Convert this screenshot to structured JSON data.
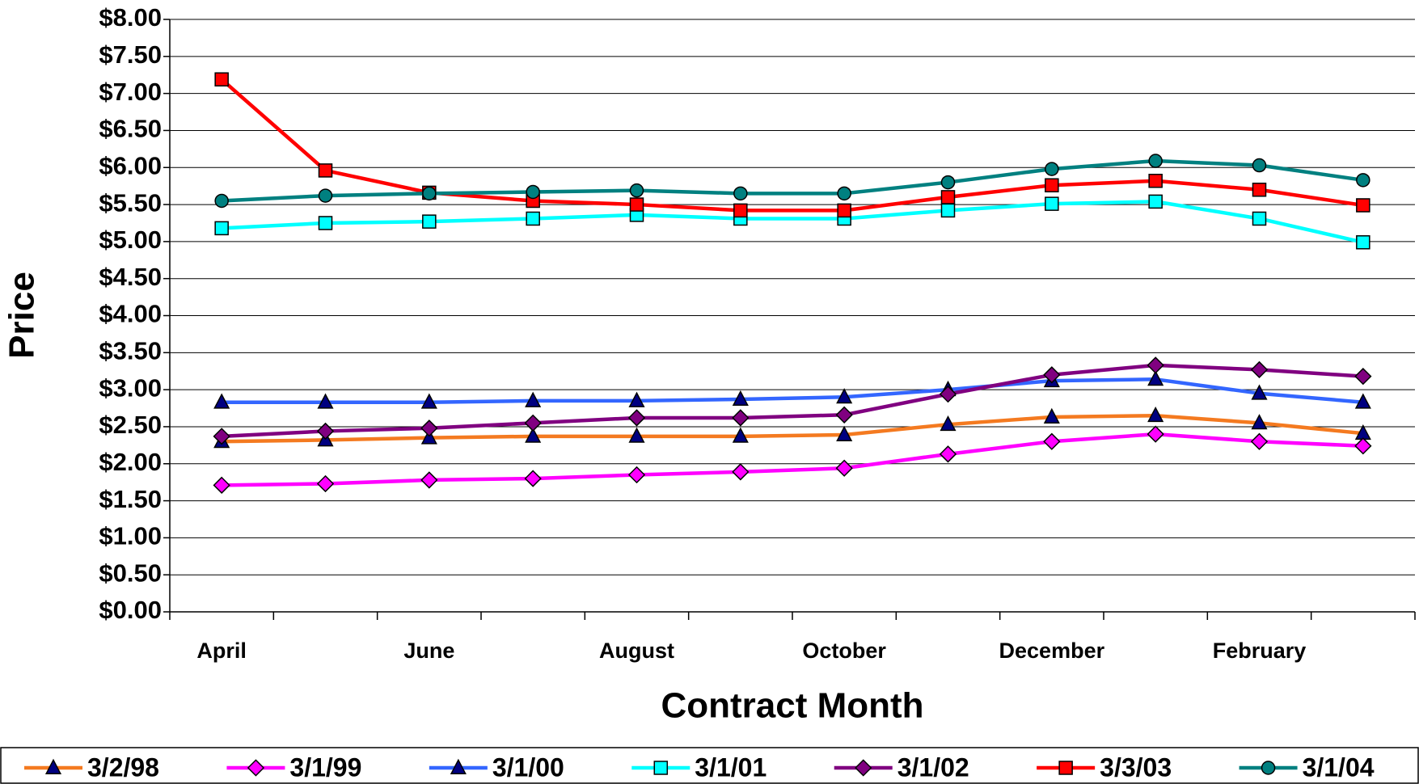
{
  "chart_data": {
    "type": "line",
    "x_label": "Contract Month",
    "y_label": "Price",
    "categories": [
      "April",
      null,
      "June",
      null,
      "August",
      null,
      "October",
      null,
      "December",
      null,
      "February",
      null
    ],
    "series": [
      {
        "name": "3/2/98",
        "color": "#f47a20",
        "marker": "triangle",
        "marker_color": "#000080",
        "values": [
          2.3,
          2.32,
          2.35,
          2.37,
          2.37,
          2.37,
          2.39,
          2.53,
          2.63,
          2.65,
          2.55,
          2.41
        ]
      },
      {
        "name": "3/1/99",
        "color": "#ff00ff",
        "marker": "diamond",
        "marker_color": "#ff00ff",
        "values": [
          1.71,
          1.73,
          1.78,
          1.8,
          1.85,
          1.89,
          1.94,
          2.13,
          2.3,
          2.4,
          2.3,
          2.24
        ]
      },
      {
        "name": "3/1/00",
        "color": "#3366ff",
        "marker": "triangle",
        "marker_color": "#000080",
        "values": [
          2.83,
          2.83,
          2.83,
          2.85,
          2.85,
          2.87,
          2.9,
          3.0,
          3.12,
          3.14,
          2.95,
          2.83
        ]
      },
      {
        "name": "3/1/01",
        "color": "#00ffff",
        "marker": "square",
        "marker_color": "#00ffff",
        "values": [
          5.18,
          5.25,
          5.27,
          5.31,
          5.36,
          5.31,
          5.31,
          5.42,
          5.51,
          5.54,
          5.31,
          4.99
        ]
      },
      {
        "name": "3/1/02",
        "color": "#800080",
        "marker": "diamond",
        "marker_color": "#800080",
        "values": [
          2.37,
          2.44,
          2.48,
          2.55,
          2.62,
          2.62,
          2.66,
          2.94,
          3.2,
          3.33,
          3.27,
          3.18
        ]
      },
      {
        "name": "3/3/03",
        "color": "#ff0000",
        "marker": "square",
        "marker_color": "#ff0000",
        "values": [
          7.19,
          5.96,
          5.66,
          5.55,
          5.5,
          5.42,
          5.42,
          5.6,
          5.76,
          5.82,
          5.7,
          5.49
        ]
      },
      {
        "name": "3/1/04",
        "color": "#008080",
        "marker": "circle",
        "marker_color": "#008080",
        "values": [
          5.55,
          5.62,
          5.65,
          5.67,
          5.69,
          5.65,
          5.65,
          5.8,
          5.98,
          6.09,
          6.03,
          5.83
        ]
      }
    ],
    "ylim": [
      0,
      8
    ],
    "yticks": [
      {
        "value": 0,
        "label": "$0.00"
      },
      {
        "value": 0.5,
        "label": "$0.50"
      },
      {
        "value": 1,
        "label": "$1.00"
      },
      {
        "value": 1.5,
        "label": "$1.50"
      },
      {
        "value": 2,
        "label": "$2.00"
      },
      {
        "value": 2.5,
        "label": "$2.50"
      },
      {
        "value": 3,
        "label": "$3.00"
      },
      {
        "value": 3.5,
        "label": "$3.50"
      },
      {
        "value": 4,
        "label": "$4.00"
      },
      {
        "value": 4.5,
        "label": "$4.50"
      },
      {
        "value": 5,
        "label": "$5.00"
      },
      {
        "value": 5.5,
        "label": "$5.50"
      },
      {
        "value": 6,
        "label": "$6.00"
      },
      {
        "value": 6.5,
        "label": "$6.50"
      },
      {
        "value": 7,
        "label": "$7.00"
      },
      {
        "value": 7.5,
        "label": "$7.50"
      },
      {
        "value": 8,
        "label": "$8.00"
      }
    ],
    "grid": true,
    "legend": "bottom"
  }
}
